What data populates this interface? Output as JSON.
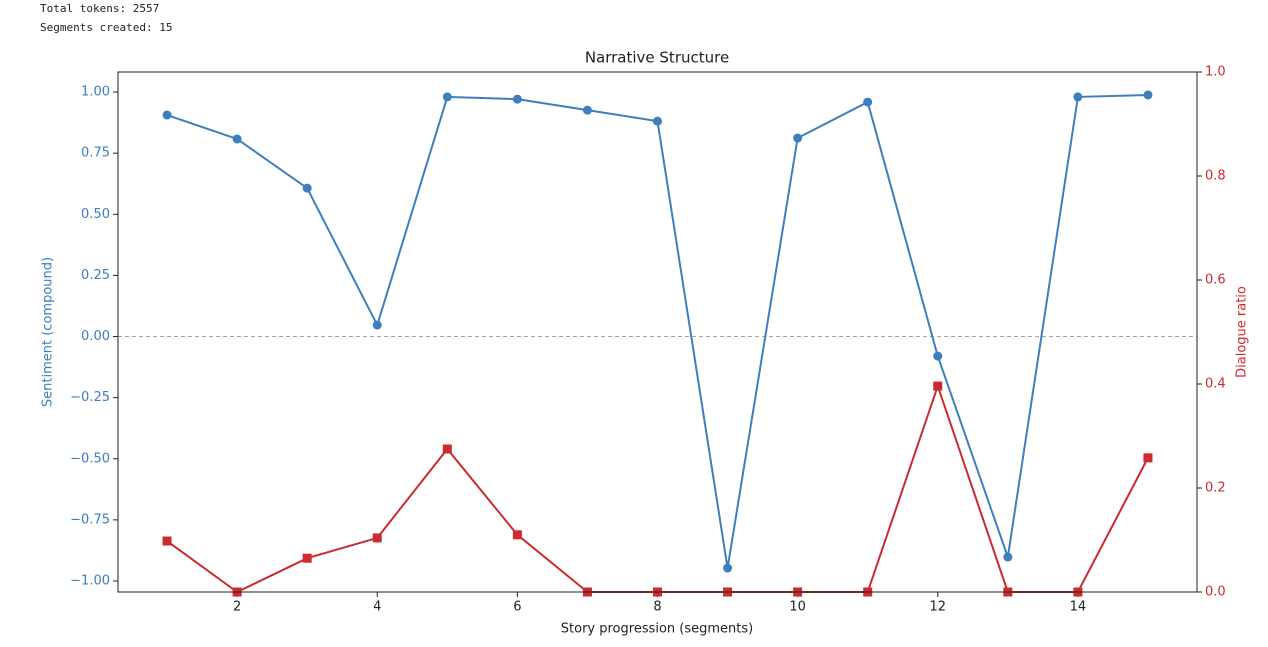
{
  "output": [
    "Total tokens: 2557",
    "Segments created: 15"
  ],
  "chart_data": {
    "type": "line",
    "title": "Narrative Structure",
    "x_label": "Story progression (segments)",
    "y_label": "Sentiment (compound)",
    "y2_label": "Dialogue ratio",
    "x": [
      1,
      2,
      3,
      4,
      5,
      6,
      7,
      8,
      9,
      10,
      11,
      12,
      13,
      14,
      15
    ],
    "series": [
      {
        "name": "Sentiment",
        "color": "#3d7ebd",
        "marker": "circle",
        "axis": "y",
        "values": [
          0.906,
          0.808,
          0.607,
          0.047,
          0.98,
          0.971,
          0.926,
          0.881,
          -0.947,
          0.812,
          0.959,
          -0.08,
          -0.902,
          0.98,
          0.988
        ]
      },
      {
        "name": "Dialogue ratio",
        "color": "#cc2a2e",
        "marker": "square",
        "axis": "y2",
        "values": [
          0.098,
          0,
          0.065,
          0.104,
          0.275,
          0.11,
          0,
          0,
          0,
          0,
          0,
          0.396,
          0,
          0,
          0.258
        ]
      }
    ],
    "xlim": [
      0.3,
      15.7
    ],
    "xticks": [
      2,
      4,
      6,
      8,
      10,
      12,
      14
    ],
    "ylim": [
      -1.045,
      1.082
    ],
    "yticks": [
      {
        "value": -1,
        "label": "−1.00"
      },
      {
        "value": -0.75,
        "label": "−0.75"
      },
      {
        "value": -0.5,
        "label": "−0.50"
      },
      {
        "value": -0.25,
        "label": "−0.25"
      },
      {
        "value": 0,
        "label": "0.00"
      },
      {
        "value": 0.25,
        "label": "0.25"
      },
      {
        "value": 0.5,
        "label": "0.50"
      },
      {
        "value": 0.75,
        "label": "0.75"
      },
      {
        "value": 1,
        "label": "1.00"
      }
    ],
    "y2lim": [
      0,
      1
    ],
    "y2ticks": [
      {
        "value": 0,
        "label": "0.0"
      },
      {
        "value": 0.2,
        "label": "0.2"
      },
      {
        "value": 0.4,
        "label": "0.4"
      },
      {
        "value": 0.6,
        "label": "0.6"
      },
      {
        "value": 0.8,
        "label": "0.8"
      },
      {
        "value": 1,
        "label": "1.0"
      }
    ],
    "hline": 0,
    "hline_color": "#888888"
  }
}
